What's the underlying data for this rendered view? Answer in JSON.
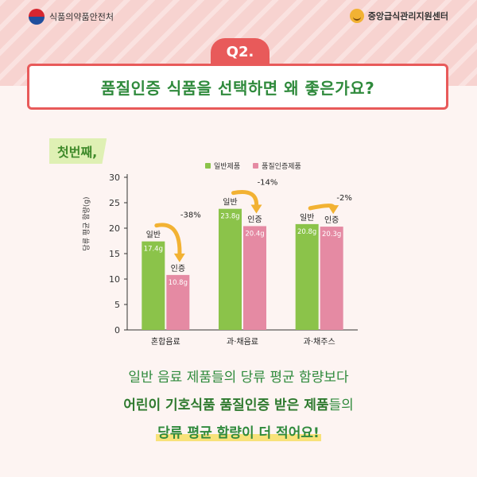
{
  "header": {
    "left_logo": "식품의약품안전처",
    "right_logo": "중앙급식관리지원센터"
  },
  "question": {
    "badge": "Q2.",
    "title": "품질인증 식품을 선택하면 왜 좋은가요?"
  },
  "section_tag": "첫번째,",
  "colors": {
    "general": "#8bc34a",
    "certified": "#e58aa3",
    "arrow": "#f2b233",
    "title_green": "#2f8a3c",
    "accent_red": "#e85a5a"
  },
  "chart_data": {
    "type": "bar",
    "title": "",
    "xlabel": "",
    "ylabel": "당류 평균 함량(g)",
    "ylim": [
      0,
      30
    ],
    "yticks": [
      0,
      5,
      10,
      15,
      20,
      25,
      30
    ],
    "categories": [
      "혼합음료",
      "과·채음료",
      "과·채주스"
    ],
    "series": [
      {
        "name": "일반제품",
        "short_label": "일반",
        "values": [
          17.4,
          23.8,
          20.8
        ],
        "value_labels": [
          "17.4g",
          "23.8g",
          "20.8g"
        ]
      },
      {
        "name": "품질인증제품",
        "short_label": "인증",
        "values": [
          10.8,
          20.4,
          20.3
        ],
        "value_labels": [
          "10.8g",
          "20.4g",
          "20.3g"
        ]
      }
    ],
    "annotations": [
      "-38%",
      "-14%",
      "-2%"
    ],
    "legend": "top",
    "grid": false
  },
  "bottom_text": {
    "line1": "일반 음료 제품들의 당류 평균 함량보다",
    "line2_bold": "어린이 기호식품 품질인증 받은 제품",
    "line2_rest": "들의",
    "line3": "당류 평균 함량이 더 적어요!"
  }
}
